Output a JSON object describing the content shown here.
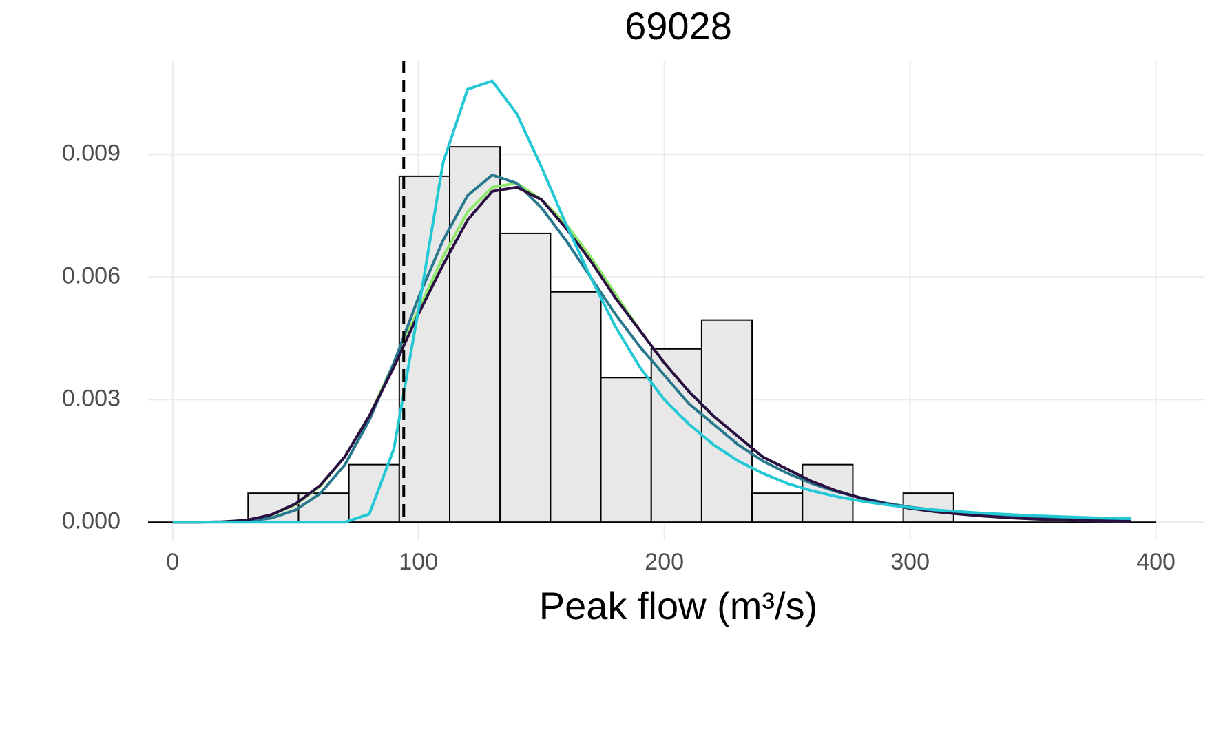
{
  "chart_data": {
    "type": "histogram",
    "title": "69028",
    "x_label": "Peak flow (m³/s)",
    "bins": [
      30.7,
      51.2,
      71.7,
      92.2,
      112.7,
      133.2,
      153.7,
      174.2,
      194.7,
      215.2,
      235.7,
      256.2,
      276.7,
      297.2,
      317.7
    ],
    "values": [
      0.00071,
      0.00071,
      0.00141,
      0.00847,
      0.00919,
      0.00707,
      0.00564,
      0.00354,
      0.00424,
      0.00495,
      0.00071,
      0.00141,
      0,
      0.00071
    ],
    "bar_color": "#e8e8e8",
    "vline": 94,
    "curve_x": [
      0,
      10,
      20,
      30,
      40,
      50,
      60,
      70,
      80,
      90,
      100,
      110,
      120,
      130,
      140,
      150,
      160,
      170,
      180,
      190,
      200,
      210,
      220,
      230,
      240,
      250,
      260,
      270,
      280,
      290,
      300,
      310,
      320,
      330,
      340,
      350,
      360,
      370,
      380,
      390
    ],
    "series": [
      {
        "color": "#8fe86a",
        "values": [
          0,
          0,
          1e-05,
          5e-05,
          0.00017,
          0.00043,
          0.00088,
          0.0016,
          0.0026,
          0.0039,
          0.0052,
          0.0065,
          0.0076,
          0.0082,
          0.0083,
          0.0079,
          0.0073,
          0.0065,
          0.0056,
          0.0047,
          0.0039,
          0.0032,
          0.0026,
          0.0021,
          0.0016,
          0.0013,
          0.001,
          0.00077,
          0.00059,
          0.00045,
          0.00034,
          0.00026,
          0.0002,
          0.00015,
          0.00011,
          8e-05,
          6e-05,
          4e-05,
          3e-05,
          2e-05
        ]
      },
      {
        "color": "#2a788e",
        "values": [
          0,
          0,
          1e-05,
          3e-05,
          0.0001,
          0.0003,
          0.0007,
          0.0014,
          0.0025,
          0.0039,
          0.0055,
          0.0069,
          0.008,
          0.0085,
          0.0083,
          0.0077,
          0.0069,
          0.006,
          0.0051,
          0.0043,
          0.0036,
          0.0029,
          0.0024,
          0.0019,
          0.0015,
          0.0012,
          0.00095,
          0.00075,
          0.0006,
          0.00047,
          0.00037,
          0.0003,
          0.00024,
          0.00019,
          0.00015,
          0.00012,
          0.0001,
          8e-05,
          6e-05,
          5e-05
        ]
      },
      {
        "color": "#2b0f42",
        "values": [
          0,
          0,
          1e-05,
          5e-05,
          0.00018,
          0.00045,
          0.0009,
          0.0016,
          0.0026,
          0.0038,
          0.0051,
          0.0063,
          0.0074,
          0.0081,
          0.0082,
          0.0079,
          0.0072,
          0.0064,
          0.0055,
          0.0047,
          0.0039,
          0.0032,
          0.0026,
          0.0021,
          0.0016,
          0.0013,
          0.001,
          0.00077,
          0.00059,
          0.00045,
          0.00034,
          0.00026,
          0.0002,
          0.00015,
          0.00011,
          8e-05,
          6e-05,
          4e-05,
          3e-05,
          2e-05
        ]
      },
      {
        "color": "#22c8d4",
        "values": [
          0,
          0,
          0,
          0,
          0,
          0,
          0,
          0,
          0.0002,
          0.0018,
          0.0052,
          0.0088,
          0.0106,
          0.0108,
          0.01,
          0.0087,
          0.0073,
          0.006,
          0.0048,
          0.0038,
          0.003,
          0.0024,
          0.0019,
          0.0015,
          0.0012,
          0.00095,
          0.00077,
          0.00063,
          0.00052,
          0.00043,
          0.00036,
          0.0003,
          0.00026,
          0.00022,
          0.00019,
          0.00016,
          0.00014,
          0.00012,
          0.0001,
          9e-05
        ]
      }
    ],
    "xlim": [
      -10,
      420
    ],
    "ylim": [
      -0.00045,
      0.0113
    ],
    "xticks": [
      0,
      100,
      200,
      300,
      400
    ],
    "yticks": [
      {
        "value": 0,
        "label": "0.000"
      },
      {
        "value": 0.003,
        "label": "0.003"
      },
      {
        "value": 0.006,
        "label": "0.006"
      },
      {
        "value": 0.009,
        "label": "0.009"
      }
    ],
    "grid": true
  }
}
